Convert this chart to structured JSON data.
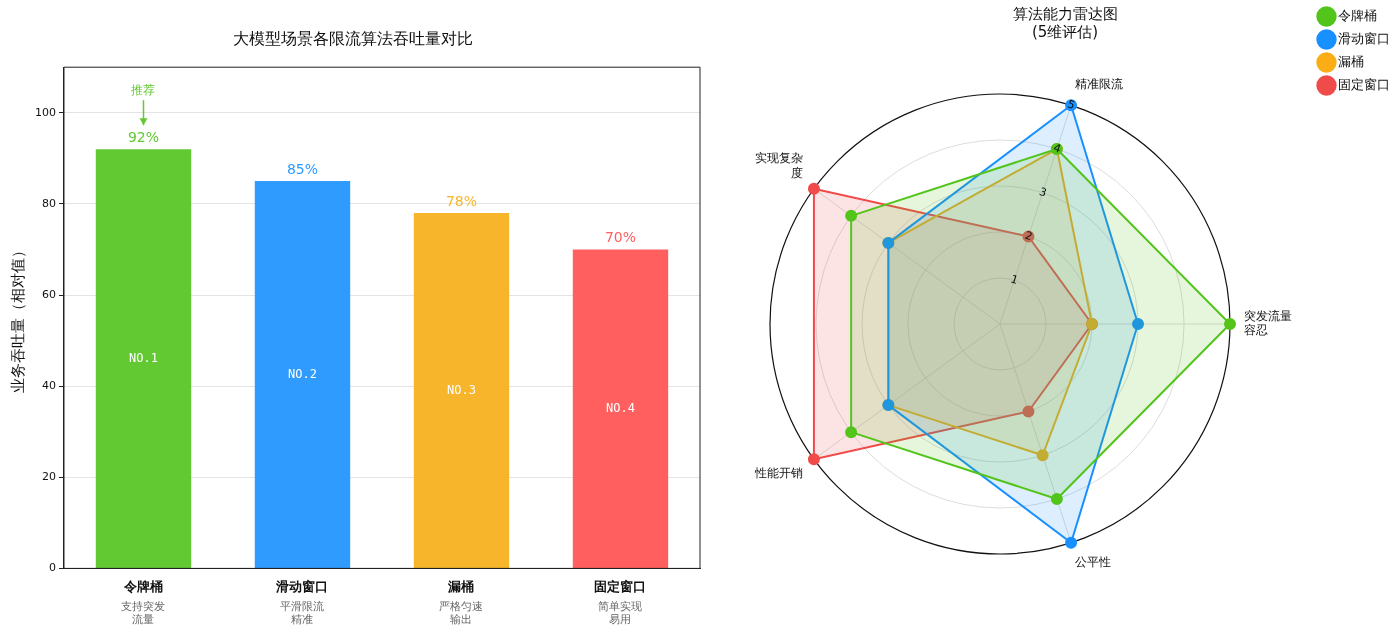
{
  "chart_data": [
    {
      "type": "bar",
      "title": "大模型场景各限流算法吞吐量对比",
      "ylabel": "业务吞吐量（相对值）",
      "categories": [
        "令牌桶",
        "滑动窗口",
        "漏桶",
        "固定窗口"
      ],
      "values": [
        92,
        85,
        78,
        70
      ],
      "colors": [
        "#63c932",
        "#2f9bff",
        "#f7b52c",
        "#ff5f5f"
      ],
      "value_labels": [
        "92%",
        "85%",
        "78%",
        "70%"
      ],
      "ylim": [
        0,
        110
      ],
      "yticks": [
        0,
        20,
        40,
        60,
        80,
        100
      ],
      "grid": "y",
      "legend": false,
      "annotations": [
        "推荐",
        "NO.1",
        "NO.2",
        "NO.3",
        "NO.4",
        "支持突发流量",
        "平滑限流精准",
        "严格匀速输出",
        "简单实现易用"
      ]
    },
    {
      "type": "radar",
      "title": "算法能力雷达图\n(5维评估)",
      "categories": [
        "精准限流",
        "突发流量容忍",
        "公平性",
        "性能开销",
        "实现复杂度"
      ],
      "series": [
        {
          "name": "令牌桶",
          "color": "#52c41a",
          "values": [
            4,
            5,
            4,
            4,
            4
          ]
        },
        {
          "name": "滑动窗口",
          "color": "#1890ff",
          "values": [
            5,
            3,
            5,
            3,
            3
          ]
        },
        {
          "name": "漏桶",
          "color": "#faad14",
          "values": [
            4,
            2,
            3,
            3,
            3
          ]
        },
        {
          "name": "固定窗口",
          "color": "#f04b4b",
          "values": [
            2,
            2,
            2,
            5,
            5
          ]
        }
      ],
      "ylim": [
        0,
        5
      ],
      "yticks": [
        1,
        2,
        3,
        4,
        5
      ],
      "grid": true,
      "marker": "circle",
      "legend": "top right"
    }
  ]
}
